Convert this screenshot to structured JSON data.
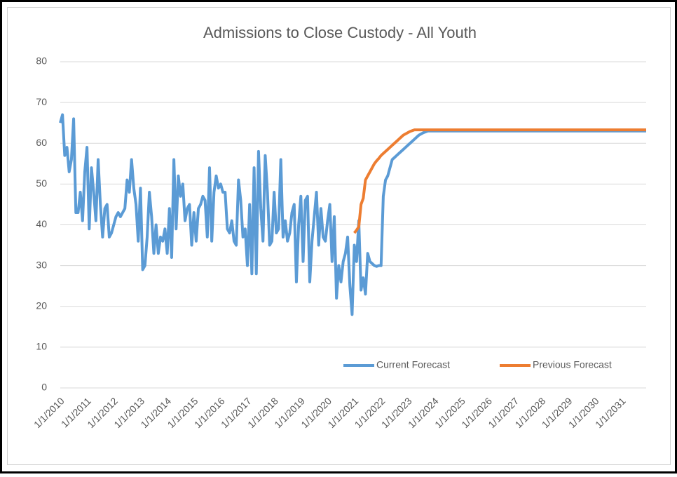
{
  "chart_data": {
    "type": "line",
    "title": "Admissions to Close Custody - All Youth",
    "categories": [
      "1/1/2010",
      null,
      null,
      null,
      null,
      null,
      null,
      null,
      null,
      null,
      null,
      null,
      "1/1/2011",
      null,
      null,
      null,
      null,
      null,
      null,
      null,
      null,
      null,
      null,
      null,
      "1/1/2012",
      null,
      null,
      null,
      null,
      null,
      null,
      null,
      null,
      null,
      null,
      null,
      "1/1/2013",
      null,
      null,
      null,
      null,
      null,
      null,
      null,
      null,
      null,
      null,
      null,
      "1/1/2014",
      null,
      null,
      null,
      null,
      null,
      null,
      null,
      null,
      null,
      null,
      null,
      "1/1/2015",
      null,
      null,
      null,
      null,
      null,
      null,
      null,
      null,
      null,
      null,
      null,
      "1/1/2016",
      null,
      null,
      null,
      null,
      null,
      null,
      null,
      null,
      null,
      null,
      null,
      "1/1/2017",
      null,
      null,
      null,
      null,
      null,
      null,
      null,
      null,
      null,
      null,
      null,
      "1/1/2018",
      null,
      null,
      null,
      null,
      null,
      null,
      null,
      null,
      null,
      null,
      null,
      "1/1/2019",
      null,
      null,
      null,
      null,
      null,
      null,
      null,
      null,
      null,
      null,
      null,
      "1/1/2020",
      null,
      null,
      null,
      null,
      null,
      null,
      null,
      null,
      null,
      null,
      null,
      "1/1/2021",
      null,
      null,
      null,
      null,
      null,
      null,
      null,
      null,
      null,
      null,
      null,
      "1/1/2022",
      null,
      null,
      null,
      null,
      null,
      null,
      null,
      null,
      null,
      null,
      null,
      "1/1/2023",
      null,
      null,
      null,
      null,
      null,
      null,
      null,
      null,
      null,
      null,
      null,
      "1/1/2024",
      null,
      null,
      null,
      null,
      null,
      null,
      null,
      null,
      null,
      null,
      null,
      "1/1/2025",
      null,
      null,
      null,
      null,
      null,
      null,
      null,
      null,
      null,
      null,
      null,
      "1/1/2026",
      null,
      null,
      null,
      null,
      null,
      null,
      null,
      null,
      null,
      null,
      null,
      "1/1/2027",
      null,
      null,
      null,
      null,
      null,
      null,
      null,
      null,
      null,
      null,
      null,
      "1/1/2028",
      null,
      null,
      null,
      null,
      null,
      null,
      null,
      null,
      null,
      null,
      null,
      "1/1/2029",
      null,
      null,
      null,
      null,
      null,
      null,
      null,
      null,
      null,
      null,
      null,
      "1/1/2030",
      null,
      null,
      null,
      null,
      null,
      null,
      null,
      null,
      null,
      null,
      null,
      "1/1/2031",
      null,
      null,
      null,
      null,
      null,
      null,
      null,
      null,
      null,
      null,
      null
    ],
    "series": [
      {
        "name": "Current Forecast",
        "color": "#5b9bd5",
        "values": [
          65,
          67,
          57,
          59,
          53,
          56,
          66,
          43,
          43,
          48,
          41,
          53,
          59,
          39,
          54,
          48,
          41,
          56,
          45,
          37,
          44,
          45,
          37,
          38,
          40,
          42,
          43,
          42,
          43,
          44,
          51,
          48,
          56,
          49,
          45,
          36,
          49,
          29,
          30,
          37,
          48,
          42,
          33,
          40,
          33,
          37,
          36,
          39,
          33,
          44,
          32,
          56,
          39,
          52,
          47,
          50,
          41,
          44,
          45,
          35,
          43,
          36,
          44,
          45,
          47,
          46,
          37,
          54,
          36,
          48,
          52,
          49,
          50,
          48,
          48,
          39,
          38,
          41,
          36,
          35,
          51,
          46,
          37,
          39,
          30,
          45,
          28,
          54,
          28,
          58,
          44,
          36,
          57,
          48,
          35,
          36,
          48,
          38,
          39,
          56,
          37,
          41,
          36,
          38,
          43,
          45,
          26,
          40,
          47,
          31,
          46,
          47,
          26,
          36,
          42,
          48,
          35,
          44,
          37,
          36,
          41,
          45,
          31,
          42,
          22,
          30,
          26,
          31,
          33,
          37,
          25,
          18,
          35,
          31,
          41,
          24,
          27,
          23,
          33,
          31,
          30.5,
          30,
          29.8,
          30,
          30,
          47,
          51,
          52,
          54,
          56,
          56.5,
          57,
          57.5,
          58,
          58.5,
          59,
          59.5,
          60,
          60.5,
          61,
          61.5,
          62,
          62.3,
          62.6,
          62.8,
          63,
          63,
          63,
          63,
          63,
          63,
          63,
          63,
          63,
          63,
          63,
          63,
          63,
          63,
          63,
          63,
          63,
          63,
          63,
          63,
          63,
          63,
          63,
          63,
          63,
          63,
          63,
          63,
          63,
          63,
          63,
          63,
          63,
          63,
          63,
          63,
          63,
          63,
          63,
          63,
          63,
          63,
          63,
          63,
          63,
          63,
          63,
          63,
          63,
          63,
          63,
          63,
          63,
          63,
          63,
          63,
          63,
          63,
          63,
          63,
          63,
          63,
          63,
          63,
          63,
          63,
          63,
          63,
          63,
          63,
          63,
          63,
          63,
          63,
          63,
          63,
          63,
          63,
          63,
          63,
          63,
          63,
          63,
          63,
          63,
          63,
          63,
          63,
          63,
          63,
          63,
          63,
          63,
          63,
          63,
          63,
          63,
          63,
          63
        ]
      },
      {
        "name": "Previous Forecast",
        "color": "#ed7d31",
        "values": [
          null,
          null,
          null,
          null,
          null,
          null,
          null,
          null,
          null,
          null,
          null,
          null,
          null,
          null,
          null,
          null,
          null,
          null,
          null,
          null,
          null,
          null,
          null,
          null,
          null,
          null,
          null,
          null,
          null,
          null,
          null,
          null,
          null,
          null,
          null,
          null,
          null,
          null,
          null,
          null,
          null,
          null,
          null,
          null,
          null,
          null,
          null,
          null,
          null,
          null,
          null,
          null,
          null,
          null,
          null,
          null,
          null,
          null,
          null,
          null,
          null,
          null,
          null,
          null,
          null,
          null,
          null,
          null,
          null,
          null,
          null,
          null,
          null,
          null,
          null,
          null,
          null,
          null,
          null,
          null,
          null,
          null,
          null,
          null,
          null,
          null,
          null,
          null,
          null,
          null,
          null,
          null,
          null,
          null,
          null,
          null,
          null,
          null,
          null,
          null,
          null,
          null,
          null,
          null,
          null,
          null,
          null,
          null,
          null,
          null,
          null,
          null,
          null,
          null,
          null,
          null,
          null,
          null,
          null,
          null,
          null,
          null,
          null,
          null,
          null,
          null,
          null,
          null,
          null,
          null,
          null,
          null,
          38,
          38.7,
          39.5,
          45,
          46.5,
          51,
          52,
          53,
          54,
          55,
          55.7,
          56.3,
          57,
          57.5,
          58,
          58.5,
          59,
          59.5,
          60,
          60.5,
          61,
          61.5,
          62,
          62.3,
          62.6,
          62.9,
          63.1,
          63.3,
          63.3,
          63.3,
          63.3,
          63.3,
          63.3,
          63.3,
          63.3,
          63.3,
          63.3,
          63.3,
          63.3,
          63.3,
          63.3,
          63.3,
          63.3,
          63.3,
          63.3,
          63.3,
          63.3,
          63.3,
          63.3,
          63.3,
          63.3,
          63.3,
          63.3,
          63.3,
          63.3,
          63.3,
          63.3,
          63.3,
          63.3,
          63.3,
          63.3,
          63.3,
          63.3,
          63.3,
          63.3,
          63.3,
          63.3,
          63.3,
          63.3,
          63.3,
          63.3,
          63.3,
          63.3,
          63.3,
          63.3,
          63.3,
          63.3,
          63.3,
          63.3,
          63.3,
          63.3,
          63.3,
          63.3,
          63.3,
          63.3,
          63.3,
          63.3,
          63.3,
          63.3,
          63.3,
          63.3,
          63.3,
          63.3,
          63.3,
          63.3,
          63.3,
          63.3,
          63.3,
          63.3,
          63.3,
          63.3,
          63.3,
          63.3,
          63.3,
          63.3,
          63.3,
          63.3,
          63.3,
          63.3,
          63.3,
          63.3,
          63.3,
          63.3,
          63.3,
          63.3,
          63.3,
          63.3,
          63.3,
          63.3,
          63.3,
          63.3,
          63.3,
          63.3,
          63.3,
          63.3,
          63.3,
          63.3,
          63.3,
          63.3,
          63.3,
          63.3,
          63.3
        ]
      }
    ],
    "ylim": [
      0,
      80
    ],
    "yticks": [
      0,
      10,
      20,
      30,
      40,
      50,
      60,
      70,
      80
    ],
    "grid": true,
    "legend": "bottom-right"
  }
}
